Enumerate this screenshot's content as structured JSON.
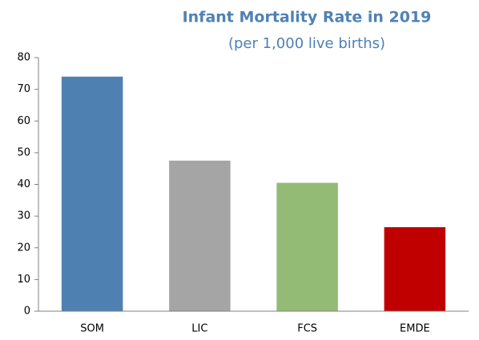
{
  "chart_data": {
    "type": "bar",
    "title": "Infant Mortality Rate in 2019",
    "subtitle": "(per 1,000 live births)",
    "categories": [
      "SOM",
      "LIC",
      "FCS",
      "EMDE"
    ],
    "values": [
      74,
      47.5,
      40.5,
      26.5
    ],
    "colors": [
      "#4e81b1",
      "#a5a5a5",
      "#93bb76",
      "#c00000"
    ],
    "ylim": [
      0,
      80
    ],
    "yticks": [
      0,
      10,
      20,
      30,
      40,
      50,
      60,
      70,
      80
    ],
    "grid": false
  }
}
